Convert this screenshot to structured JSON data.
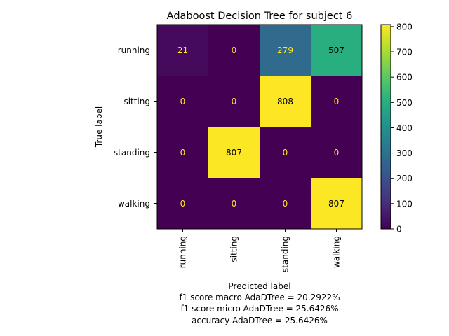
{
  "chart_data": {
    "type": "heatmap",
    "title": "Adaboost Decision Tree for subject 6",
    "xlabel": "Predicted label",
    "ylabel": "True label",
    "x_categories": [
      "running",
      "sitting",
      "standing",
      "walking"
    ],
    "y_categories": [
      "running",
      "sitting",
      "standing",
      "walking"
    ],
    "matrix": [
      [
        21,
        0,
        279,
        507
      ],
      [
        0,
        0,
        808,
        0
      ],
      [
        0,
        807,
        0,
        0
      ],
      [
        0,
        0,
        0,
        807
      ]
    ],
    "colormap": "viridis",
    "vmin": 0,
    "vmax": 808,
    "colorbar_ticks": [
      0,
      100,
      200,
      300,
      400,
      500,
      600,
      700,
      800
    ],
    "footer_lines": [
      "f1 score macro AdaDTree = 20.2922%",
      "f1 score micro AdaDTree = 25.6426%",
      "accuracy AdaDTree = 25.6426%"
    ]
  }
}
